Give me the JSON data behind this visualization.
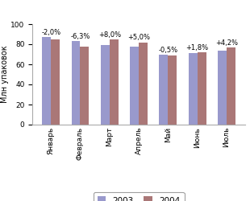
{
  "months": [
    "Январь",
    "Февраль",
    "Март",
    "Апрель",
    "Май",
    "Июнь",
    "Июль"
  ],
  "values_2003": [
    87,
    83,
    79,
    78,
    70,
    71,
    74
  ],
  "values_2004": [
    85,
    78,
    85,
    82,
    69,
    72,
    77
  ],
  "labels": [
    "-2,0%",
    "-6,3%",
    "+8,0%",
    "+5,0%",
    "-0,5%",
    "+1,8%",
    "+4,2%"
  ],
  "color_2003": "#9999cc",
  "color_2004": "#aa7777",
  "ylabel": "Млн упаковок",
  "ylim": [
    0,
    100
  ],
  "yticks": [
    0,
    20,
    40,
    60,
    80,
    100
  ],
  "legend_2003": "2003",
  "legend_2004": "2004",
  "bar_width": 0.3,
  "label_fontsize": 6.0,
  "tick_fontsize": 6.5,
  "ylabel_fontsize": 7.0,
  "legend_fontsize": 7.5
}
